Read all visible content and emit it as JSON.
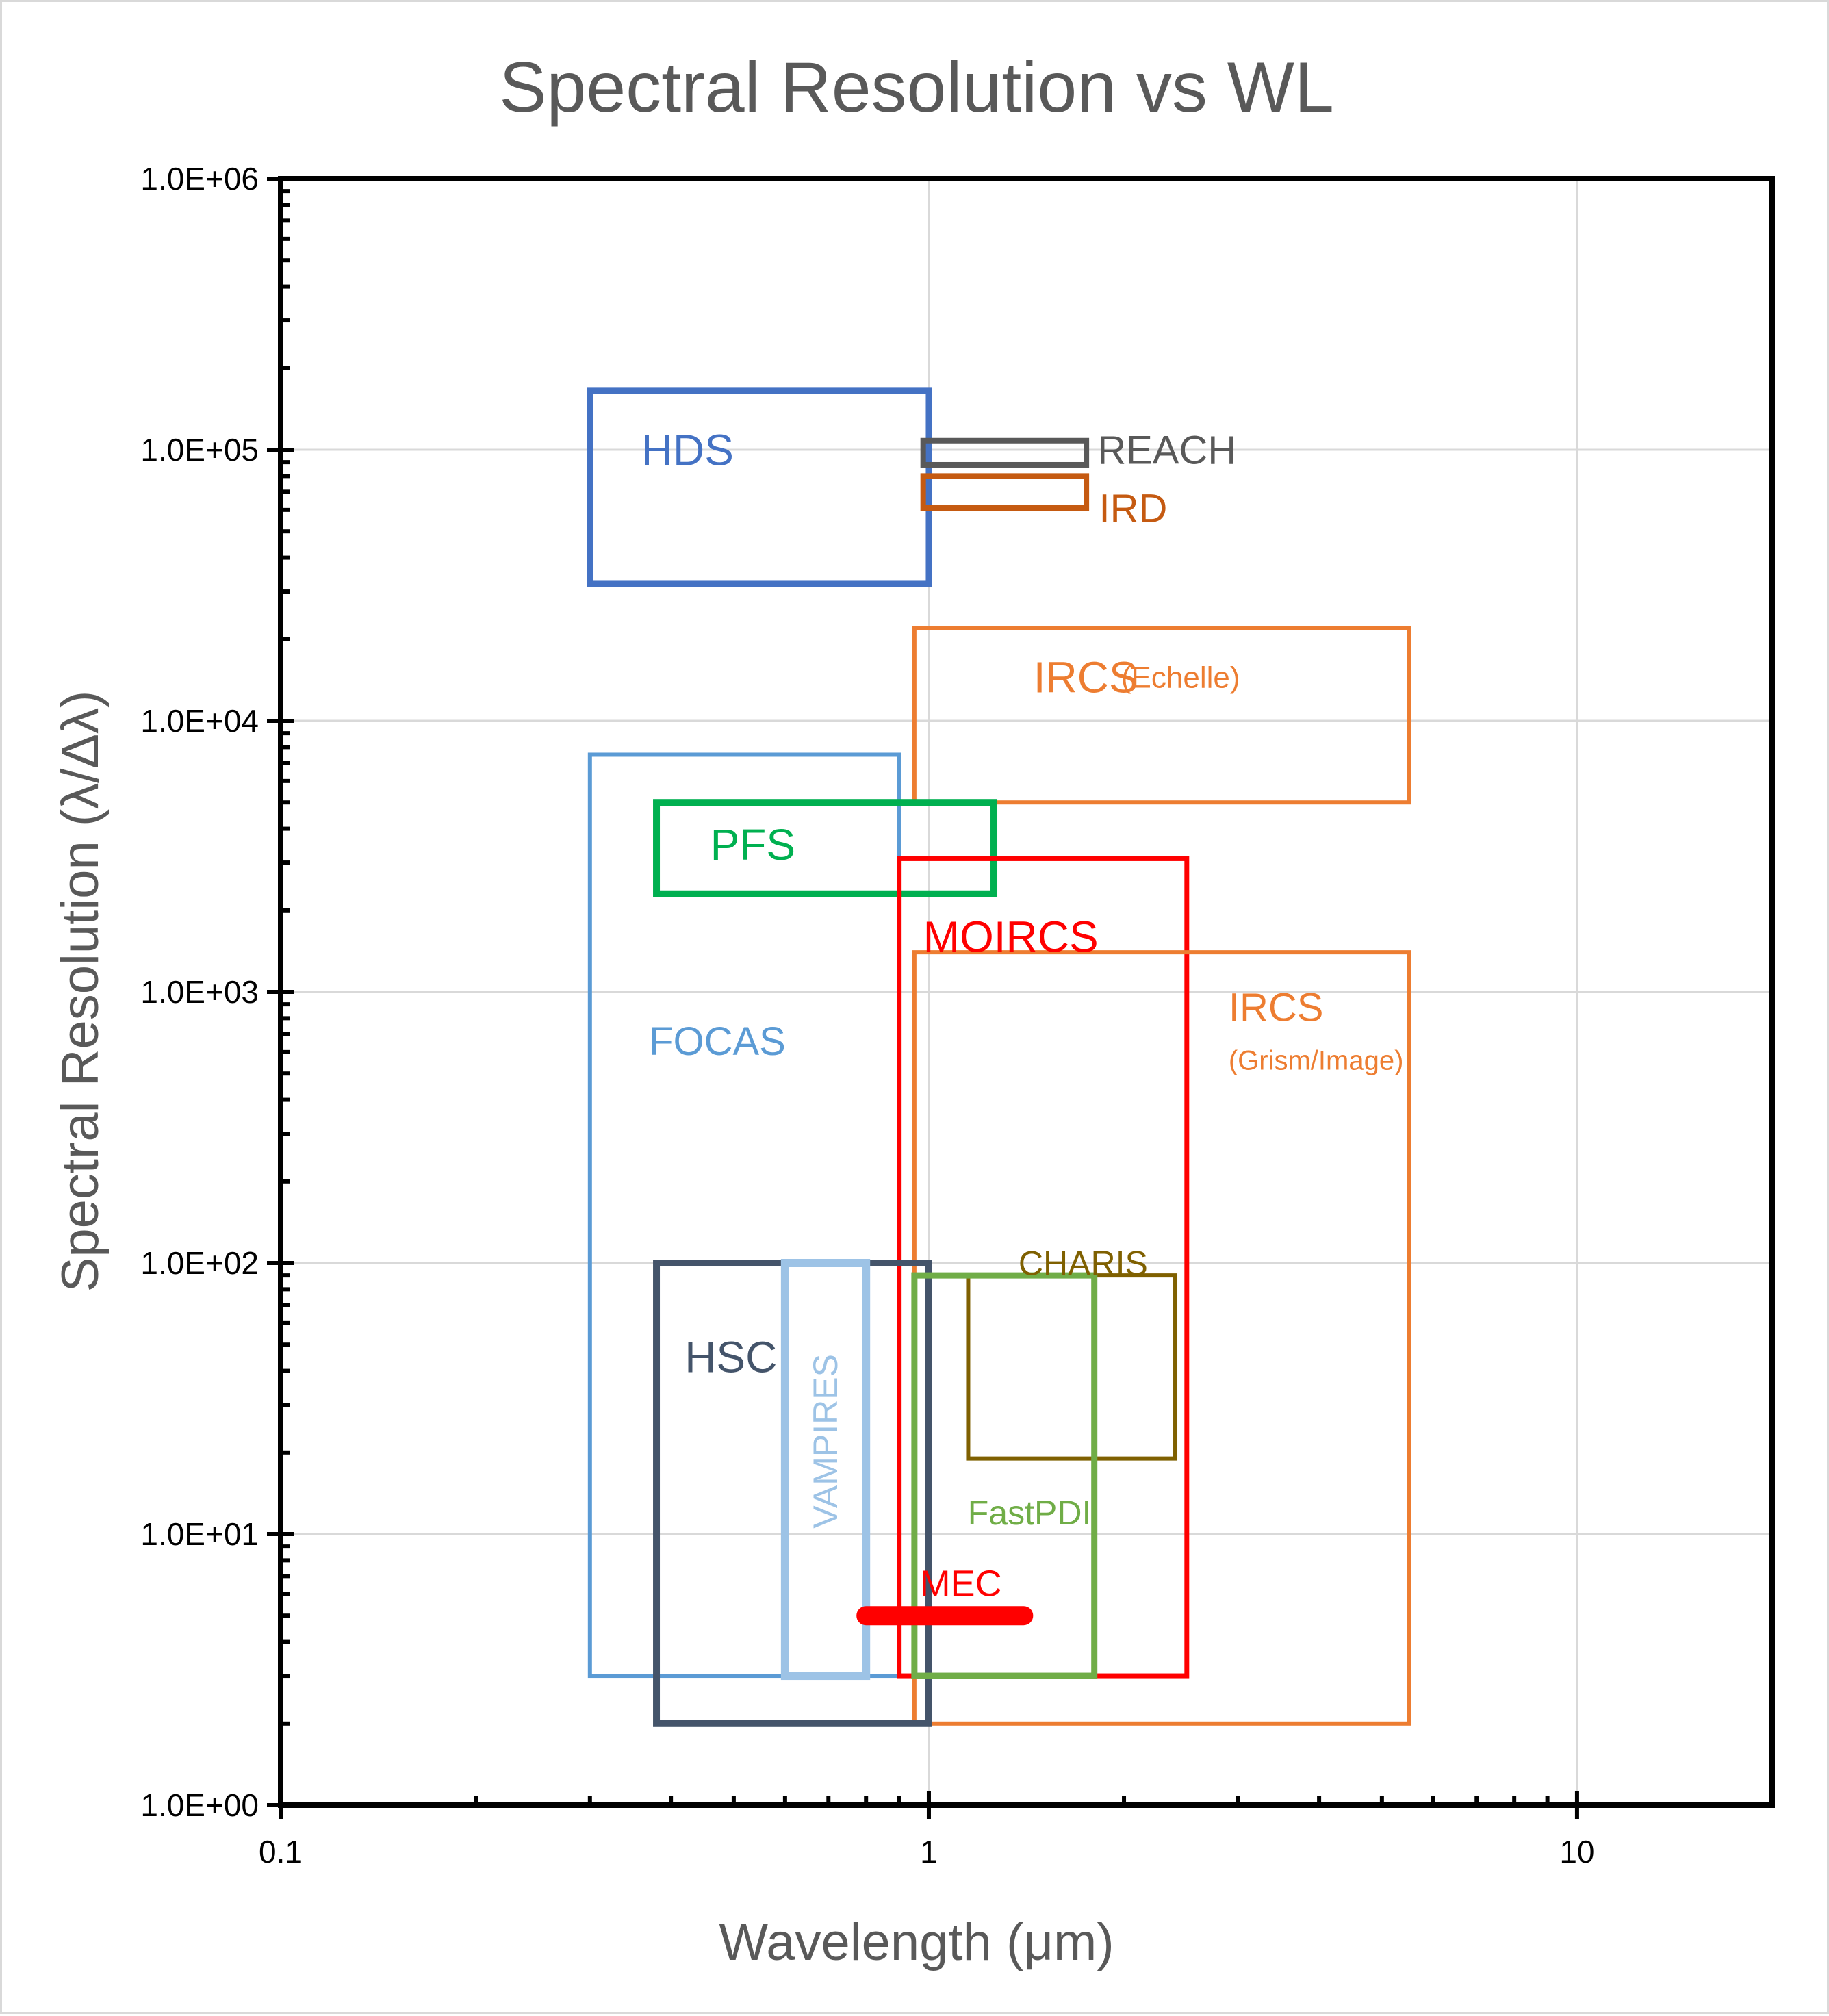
{
  "chart_data": {
    "type": "box",
    "title": "Spectral Resolution vs WL",
    "xlabel": "Wavelength (μm)",
    "ylabel": "Spectral Resolution (λ/Δλ)",
    "xscale": "log",
    "yscale": "log",
    "xlim": [
      0.1,
      20
    ],
    "ylim": [
      1,
      1000000
    ],
    "x_ticks": [
      0.1,
      1,
      10
    ],
    "x_tick_labels": [
      "0.1",
      "1",
      "10"
    ],
    "y_ticks": [
      1,
      10,
      100,
      1000,
      10000,
      100000,
      1000000
    ],
    "y_tick_labels": [
      "1.0E+00",
      "1.0E+01",
      "1.0E+02",
      "1.0E+03",
      "1.0E+04",
      "1.0E+05",
      "1.0E+06"
    ],
    "grid": true,
    "legend": "none",
    "series": [
      {
        "name": "HDS",
        "label": "HDS",
        "x": [
          0.3,
          1.0
        ],
        "y": [
          32000,
          165000
        ],
        "color": "#4472c4"
      },
      {
        "name": "REACH",
        "label": "REACH",
        "x": [
          0.98,
          1.75
        ],
        "y": [
          88000,
          108000
        ],
        "color": "#595959"
      },
      {
        "name": "IRD",
        "label": "IRD",
        "x": [
          0.98,
          1.75
        ],
        "y": [
          61000,
          80000
        ],
        "color": "#c55a11"
      },
      {
        "name": "IRCS (Echelle)",
        "label": "IRCS",
        "sublabel": "(Echelle)",
        "x": [
          0.95,
          5.5
        ],
        "y": [
          5000,
          22000
        ],
        "color": "#ed7d31"
      },
      {
        "name": "FOCAS",
        "label": "FOCAS",
        "x": [
          0.3,
          0.9
        ],
        "y": [
          3,
          7500
        ],
        "color": "#5b9bd5"
      },
      {
        "name": "PFS",
        "label": "PFS",
        "x": [
          0.38,
          1.26
        ],
        "y": [
          2300,
          5000
        ],
        "color": "#00b050"
      },
      {
        "name": "MOIRCS",
        "label": "MOIRCS",
        "x": [
          0.9,
          2.5
        ],
        "y": [
          3,
          3100
        ],
        "color": "#ff0000"
      },
      {
        "name": "IRCS (Grism/Image)",
        "label": "IRCS",
        "sublabel": "(Grism/Image)",
        "x": [
          0.95,
          5.5
        ],
        "y": [
          2,
          1400
        ],
        "color": "#ed7d31"
      },
      {
        "name": "HSC",
        "label": "HSC",
        "x": [
          0.38,
          1.0
        ],
        "y": [
          2,
          100
        ],
        "color": "#44546a"
      },
      {
        "name": "VAMPIRES",
        "label": "VAMPIRES",
        "x": [
          0.6,
          0.8
        ],
        "y": [
          3,
          100
        ],
        "color": "#9dc3e6"
      },
      {
        "name": "CHARIS",
        "label": "CHARIS",
        "x": [
          1.15,
          2.4
        ],
        "y": [
          19,
          90
        ],
        "color": "#7f6000"
      },
      {
        "name": "FastPDI",
        "label": "FastPDI",
        "x": [
          0.95,
          1.8
        ],
        "y": [
          3,
          90
        ],
        "color": "#70ad47"
      },
      {
        "name": "MEC",
        "label": "MEC",
        "x": [
          0.8,
          1.4
        ],
        "y": [
          5,
          5
        ],
        "color": "#ff0000"
      }
    ]
  }
}
